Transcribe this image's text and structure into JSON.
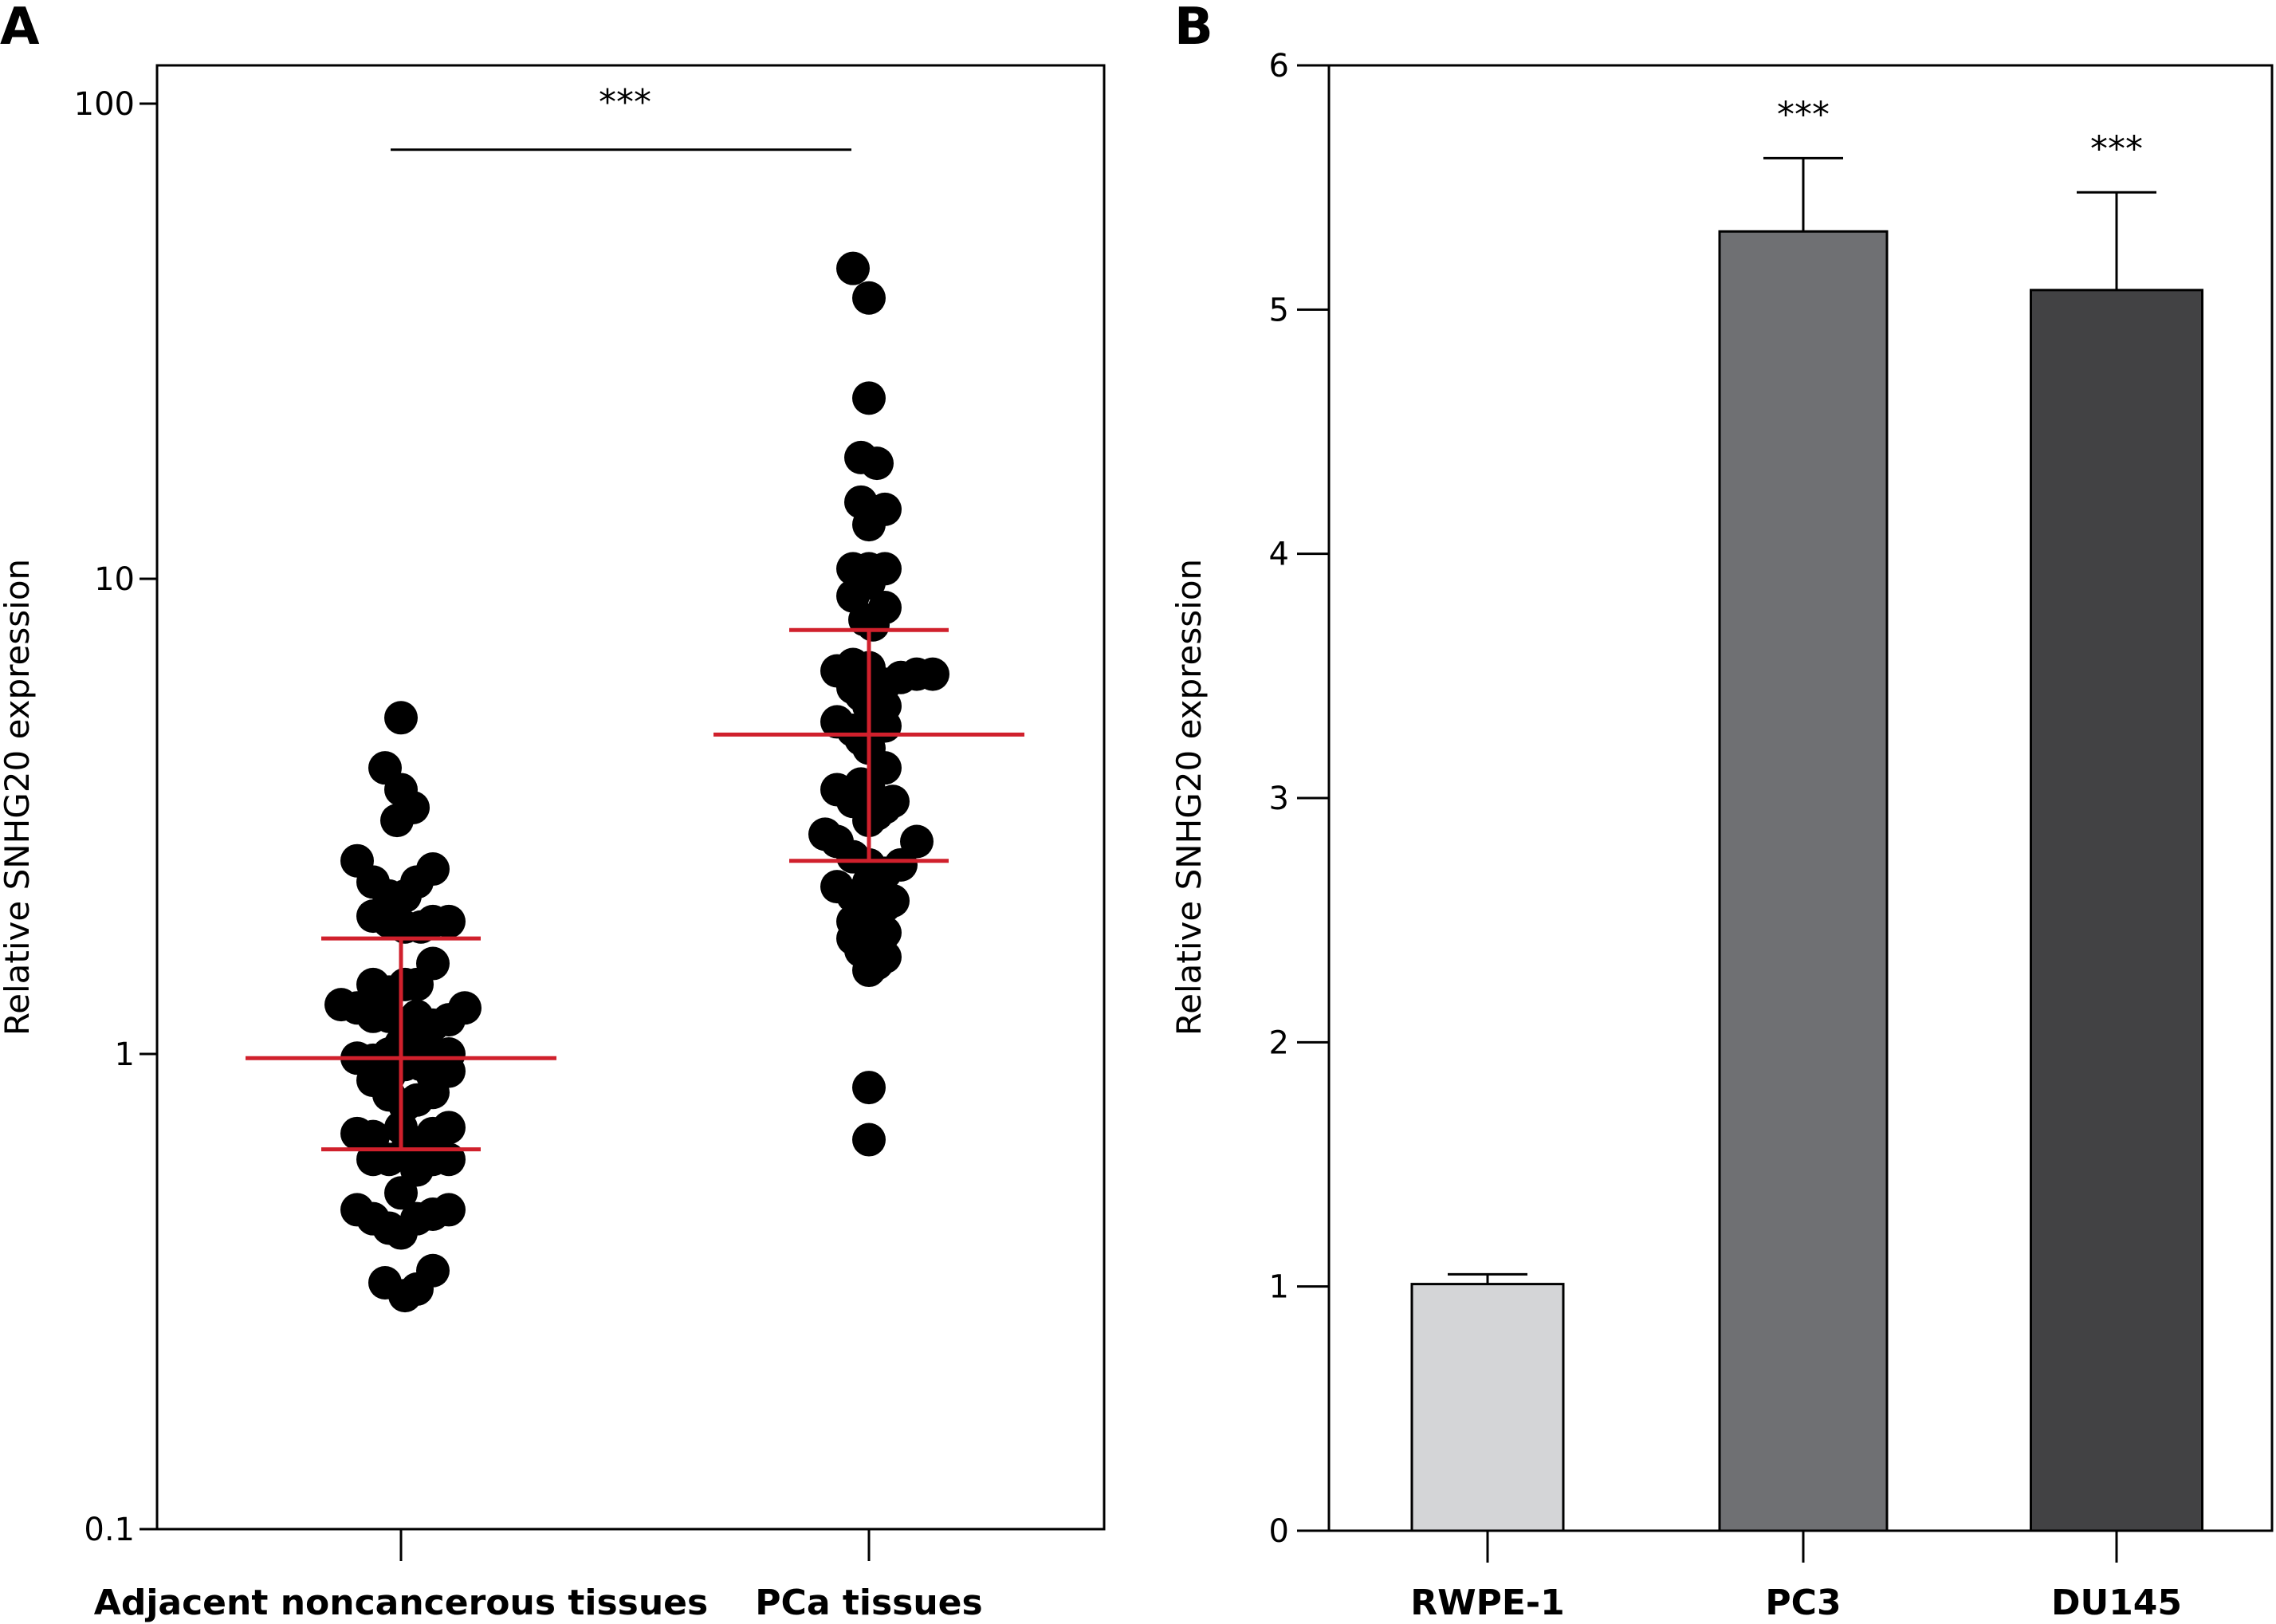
{
  "figure": {
    "panels": [
      "A",
      "B"
    ]
  },
  "chart_data": [
    {
      "type": "scatter",
      "panel": "A",
      "ylabel": "Relative SNHG20 expression",
      "yscale": "log",
      "ylim": [
        0.1,
        100
      ],
      "yticks": [
        {
          "value": 100,
          "label": "100"
        },
        {
          "value": 10,
          "label": "10"
        },
        {
          "value": 1,
          "label": "1"
        },
        {
          "value": 0.1,
          "label": "0.1"
        }
      ],
      "categories": [
        "Adjacent noncancerous tissues",
        "PCa tissues"
      ],
      "significance": {
        "label": "***",
        "between": [
          0,
          1
        ],
        "y": 80
      },
      "colors": {
        "points": "#000000",
        "summary": "#d0202c"
      },
      "series": [
        {
          "points": [
            [
              0.0,
              5.1
            ],
            [
              -0.2,
              4.0
            ],
            [
              0.0,
              3.6
            ],
            [
              0.15,
              3.3
            ],
            [
              -0.05,
              3.1
            ],
            [
              -0.55,
              2.55
            ],
            [
              -0.35,
              2.3
            ],
            [
              -0.15,
              2.15
            ],
            [
              0.05,
              2.15
            ],
            [
              0.2,
              2.3
            ],
            [
              0.4,
              2.45
            ],
            [
              -0.35,
              1.95
            ],
            [
              -0.15,
              1.9
            ],
            [
              0.05,
              1.85
            ],
            [
              0.25,
              1.85
            ],
            [
              0.4,
              1.9
            ],
            [
              0.6,
              1.9
            ],
            [
              0.4,
              1.55
            ],
            [
              -0.35,
              1.4
            ],
            [
              -0.15,
              1.35
            ],
            [
              0.05,
              1.4
            ],
            [
              0.2,
              1.4
            ],
            [
              -0.75,
              1.27
            ],
            [
              -0.55,
              1.25
            ],
            [
              -0.35,
              1.2
            ],
            [
              -0.15,
              1.2
            ],
            [
              0.05,
              1.15
            ],
            [
              0.2,
              1.2
            ],
            [
              0.4,
              1.15
            ],
            [
              0.6,
              1.18
            ],
            [
              0.8,
              1.25
            ],
            [
              -0.55,
              0.98
            ],
            [
              -0.35,
              0.97
            ],
            [
              -0.15,
              1.0
            ],
            [
              0.0,
              1.05
            ],
            [
              0.2,
              1.05
            ],
            [
              0.4,
              1.0
            ],
            [
              0.6,
              1.0
            ],
            [
              -0.35,
              0.88
            ],
            [
              -0.15,
              0.9
            ],
            [
              0.05,
              0.95
            ],
            [
              0.25,
              0.95
            ],
            [
              0.4,
              0.9
            ],
            [
              0.6,
              0.92
            ],
            [
              -0.15,
              0.82
            ],
            [
              0.05,
              0.78
            ],
            [
              0.2,
              0.8
            ],
            [
              0.4,
              0.83
            ],
            [
              -0.55,
              0.68
            ],
            [
              -0.35,
              0.67
            ],
            [
              0.0,
              0.7
            ],
            [
              0.2,
              0.65
            ],
            [
              0.4,
              0.68
            ],
            [
              0.6,
              0.7
            ],
            [
              -0.35,
              0.6
            ],
            [
              -0.15,
              0.6
            ],
            [
              0.05,
              0.62
            ],
            [
              0.2,
              0.57
            ],
            [
              0.4,
              0.6
            ],
            [
              0.6,
              0.6
            ],
            [
              0.0,
              0.51
            ],
            [
              -0.55,
              0.47
            ],
            [
              -0.35,
              0.45
            ],
            [
              -0.15,
              0.43
            ],
            [
              0.0,
              0.42
            ],
            [
              0.2,
              0.45
            ],
            [
              0.4,
              0.46
            ],
            [
              0.6,
              0.47
            ],
            [
              -0.2,
              0.33
            ],
            [
              0.05,
              0.31
            ],
            [
              0.2,
              0.32
            ],
            [
              0.4,
              0.35
            ]
          ],
          "median": 0.98,
          "whisker": [
            0.63,
            1.75
          ]
        },
        {
          "points": [
            [
              -0.2,
              45
            ],
            [
              0.0,
              39
            ],
            [
              0.0,
              24
            ],
            [
              -0.1,
              18
            ],
            [
              0.1,
              17.5
            ],
            [
              -0.1,
              14.5
            ],
            [
              0.0,
              13
            ],
            [
              0.2,
              14
            ],
            [
              -0.2,
              10.5
            ],
            [
              0.0,
              10.5
            ],
            [
              0.2,
              10.5
            ],
            [
              0.0,
              9.8
            ],
            [
              -0.2,
              9.2
            ],
            [
              0.2,
              8.7
            ],
            [
              -0.05,
              8.2
            ],
            [
              0.05,
              8.0
            ],
            [
              -0.4,
              6.4
            ],
            [
              -0.2,
              6.6
            ],
            [
              -0.1,
              6.3
            ],
            [
              0.0,
              6.5
            ],
            [
              0.2,
              6.0
            ],
            [
              0.4,
              6.2
            ],
            [
              0.6,
              6.3
            ],
            [
              0.8,
              6.3
            ],
            [
              -0.2,
              5.9
            ],
            [
              -0.1,
              5.7
            ],
            [
              0.0,
              5.4
            ],
            [
              0.2,
              5.4
            ],
            [
              -0.4,
              5.0
            ],
            [
              -0.2,
              4.8
            ],
            [
              0.0,
              4.9
            ],
            [
              0.2,
              4.9
            ],
            [
              -0.1,
              4.6
            ],
            [
              0.0,
              4.4
            ],
            [
              0.2,
              4.0
            ],
            [
              -0.1,
              3.7
            ],
            [
              0.0,
              3.6
            ],
            [
              -0.4,
              3.6
            ],
            [
              -0.2,
              3.4
            ],
            [
              0.0,
              3.1
            ],
            [
              0.2,
              3.3
            ],
            [
              0.3,
              3.4
            ],
            [
              0.1,
              3.2
            ],
            [
              -0.55,
              2.9
            ],
            [
              -0.4,
              2.8
            ],
            [
              -0.2,
              2.6
            ],
            [
              0.0,
              2.5
            ],
            [
              0.2,
              2.4
            ],
            [
              0.4,
              2.5
            ],
            [
              0.6,
              2.8
            ],
            [
              -0.4,
              2.25
            ],
            [
              -0.2,
              2.15
            ],
            [
              0.0,
              2.3
            ],
            [
              0.1,
              2.1
            ],
            [
              0.2,
              2.05
            ],
            [
              0.3,
              2.1
            ],
            [
              -0.2,
              1.9
            ],
            [
              0.0,
              1.95
            ],
            [
              0.1,
              1.85
            ],
            [
              0.2,
              1.8
            ],
            [
              -0.2,
              1.75
            ],
            [
              -0.1,
              1.65
            ],
            [
              0.0,
              1.5
            ],
            [
              0.1,
              1.55
            ],
            [
              0.2,
              1.6
            ],
            [
              0.0,
              0.85
            ],
            [
              0.0,
              0.66
            ]
          ],
          "median": 4.7,
          "whisker": [
            2.55,
            7.8
          ]
        }
      ]
    },
    {
      "type": "bar",
      "panel": "B",
      "ylabel": "Relative SNHG20 expression",
      "ylim": [
        0,
        6
      ],
      "yticks": [
        0,
        1,
        2,
        3,
        4,
        5,
        6
      ],
      "categories": [
        "RWPE-1",
        "PC3",
        "DU145"
      ],
      "values": [
        1.01,
        5.32,
        5.08
      ],
      "errors": [
        0.04,
        0.3,
        0.4
      ],
      "significance": [
        "",
        "***",
        "***"
      ],
      "colors": [
        "#d4d5d7",
        "#6f7073",
        "#424244"
      ]
    }
  ]
}
